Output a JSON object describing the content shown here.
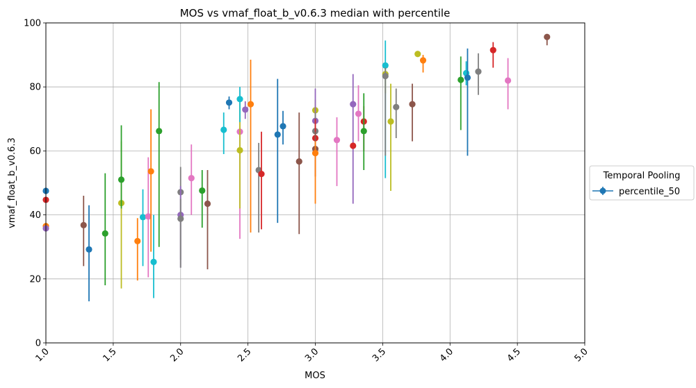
{
  "chart_data": {
    "type": "scatter",
    "title": "MOS vs vmaf_float_b_v0.6.3 median with percentile",
    "xlabel": "MOS",
    "ylabel": "vmaf_float_b_v0.6.3",
    "xlim": [
      1.0,
      5.0
    ],
    "ylim": [
      0,
      100
    ],
    "x_ticks": [
      "1.0",
      "1.5",
      "2.0",
      "2.5",
      "3.0",
      "3.5",
      "4.0",
      "4.5",
      "5.0"
    ],
    "y_ticks": [
      "0",
      "20",
      "40",
      "60",
      "80",
      "100"
    ],
    "grid": true,
    "legend": {
      "title": "Temporal Pooling",
      "placement": "right-outside",
      "entries": [
        "percentile_50"
      ]
    },
    "colors": [
      "#1f77b4",
      "#ff7f0e",
      "#2ca02c",
      "#d62728",
      "#9467bd",
      "#8c564b",
      "#e377c2",
      "#7f7f7f",
      "#bcbd22",
      "#17becf"
    ],
    "points": [
      {
        "x": 1.0,
        "y": 47.5,
        "low": 47.5,
        "high": 47.5,
        "color": "#1f77b4"
      },
      {
        "x": 1.0,
        "y": 36.5,
        "low": 36.5,
        "high": 36.5,
        "color": "#ff7f0e"
      },
      {
        "x": 1.0,
        "y": 44.7,
        "low": 44.7,
        "high": 44.7,
        "color": "#d62728"
      },
      {
        "x": 1.0,
        "y": 35.8,
        "low": 35.8,
        "high": 35.8,
        "color": "#9467bd"
      },
      {
        "x": 1.28,
        "y": 36.8,
        "low": 24.0,
        "high": 46.0,
        "color": "#8c564b"
      },
      {
        "x": 1.32,
        "y": 29.2,
        "low": 13.0,
        "high": 43.0,
        "color": "#1f77b4"
      },
      {
        "x": 1.44,
        "y": 34.2,
        "low": 18.0,
        "high": 53.0,
        "color": "#2ca02c"
      },
      {
        "x": 1.56,
        "y": 43.7,
        "low": 17.0,
        "high": 63.0,
        "color": "#bcbd22"
      },
      {
        "x": 1.56,
        "y": 51.0,
        "low": 42.0,
        "high": 68.0,
        "color": "#2ca02c"
      },
      {
        "x": 1.68,
        "y": 31.8,
        "low": 19.5,
        "high": 39.0,
        "color": "#ff7f0e"
      },
      {
        "x": 1.72,
        "y": 39.3,
        "low": 24.0,
        "high": 48.0,
        "color": "#17becf"
      },
      {
        "x": 1.76,
        "y": 39.5,
        "low": 20.5,
        "high": 58.0,
        "color": "#e377c2"
      },
      {
        "x": 1.78,
        "y": 53.6,
        "low": 28.5,
        "high": 73.0,
        "color": "#ff7f0e"
      },
      {
        "x": 1.8,
        "y": 25.3,
        "low": 14.0,
        "high": 40.0,
        "color": "#17becf"
      },
      {
        "x": 1.84,
        "y": 66.2,
        "low": 30.0,
        "high": 81.5,
        "color": "#2ca02c"
      },
      {
        "x": 2.0,
        "y": 47.1,
        "low": 26.0,
        "high": 55.0,
        "color": "#7f7f7f"
      },
      {
        "x": 2.0,
        "y": 40.0,
        "low": 23.5,
        "high": 49.0,
        "color": "#9467bd"
      },
      {
        "x": 2.0,
        "y": 38.8,
        "low": 23.5,
        "high": 45.0,
        "color": "#7f7f7f"
      },
      {
        "x": 2.08,
        "y": 51.5,
        "low": 40.0,
        "high": 62.0,
        "color": "#e377c2"
      },
      {
        "x": 2.16,
        "y": 47.6,
        "low": 36.0,
        "high": 54.0,
        "color": "#2ca02c"
      },
      {
        "x": 2.2,
        "y": 43.5,
        "low": 23.0,
        "high": 54.0,
        "color": "#8c564b"
      },
      {
        "x": 2.32,
        "y": 66.6,
        "low": 59.0,
        "high": 72.0,
        "color": "#17becf"
      },
      {
        "x": 2.36,
        "y": 75.1,
        "low": 73.0,
        "high": 77.0,
        "color": "#1f77b4"
      },
      {
        "x": 2.44,
        "y": 66.0,
        "low": 32.5,
        "high": 79.0,
        "color": "#e377c2"
      },
      {
        "x": 2.44,
        "y": 60.2,
        "low": 42.0,
        "high": 75.0,
        "color": "#bcbd22"
      },
      {
        "x": 2.44,
        "y": 76.2,
        "low": 69.0,
        "high": 80.0,
        "color": "#17becf"
      },
      {
        "x": 2.48,
        "y": 72.9,
        "low": 70.0,
        "high": 75.5,
        "color": "#9467bd"
      },
      {
        "x": 2.52,
        "y": 74.6,
        "low": 34.5,
        "high": 88.5,
        "color": "#ff7f0e"
      },
      {
        "x": 2.58,
        "y": 54.0,
        "low": 34.5,
        "high": 62.5,
        "color": "#7f7f7f"
      },
      {
        "x": 2.6,
        "y": 52.8,
        "low": 35.5,
        "high": 66.0,
        "color": "#d62728"
      },
      {
        "x": 2.72,
        "y": 65.1,
        "low": 37.5,
        "high": 82.5,
        "color": "#1f77b4"
      },
      {
        "x": 2.76,
        "y": 67.7,
        "low": 62.0,
        "high": 72.5,
        "color": "#1f77b4"
      },
      {
        "x": 2.88,
        "y": 56.7,
        "low": 34.0,
        "high": 72.0,
        "color": "#8c564b"
      },
      {
        "x": 3.0,
        "y": 72.7,
        "low": 59.0,
        "high": 76.0,
        "color": "#bcbd22"
      },
      {
        "x": 3.0,
        "y": 69.4,
        "low": 63.0,
        "high": 79.5,
        "color": "#9467bd"
      },
      {
        "x": 3.0,
        "y": 66.2,
        "low": 57.0,
        "high": 72.0,
        "color": "#7f7f7f"
      },
      {
        "x": 3.0,
        "y": 64.0,
        "low": 52.0,
        "high": 70.0,
        "color": "#d62728"
      },
      {
        "x": 3.0,
        "y": 60.6,
        "low": 52.0,
        "high": 66.0,
        "color": "#8c564b"
      },
      {
        "x": 3.0,
        "y": 59.3,
        "low": 43.5,
        "high": 63.0,
        "color": "#ff7f0e"
      },
      {
        "x": 3.16,
        "y": 63.4,
        "low": 49.0,
        "high": 70.5,
        "color": "#e377c2"
      },
      {
        "x": 3.28,
        "y": 74.6,
        "low": 43.5,
        "high": 84.0,
        "color": "#9467bd"
      },
      {
        "x": 3.28,
        "y": 61.6,
        "low": 61.0,
        "high": 62.5,
        "color": "#d62728"
      },
      {
        "x": 3.32,
        "y": 71.6,
        "low": 63.0,
        "high": 80.5,
        "color": "#e377c2"
      },
      {
        "x": 3.36,
        "y": 69.2,
        "low": 60.0,
        "high": 74.0,
        "color": "#d62728"
      },
      {
        "x": 3.36,
        "y": 66.2,
        "low": 54.0,
        "high": 78.0,
        "color": "#2ca02c"
      },
      {
        "x": 3.52,
        "y": 86.7,
        "low": 51.5,
        "high": 94.5,
        "color": "#17becf"
      },
      {
        "x": 3.52,
        "y": 84.0,
        "low": 78.0,
        "high": 86.0,
        "color": "#bcbd22"
      },
      {
        "x": 3.52,
        "y": 83.4,
        "low": 58.5,
        "high": 86.0,
        "color": "#7f7f7f"
      },
      {
        "x": 3.56,
        "y": 69.2,
        "low": 47.5,
        "high": 81.0,
        "color": "#bcbd22"
      },
      {
        "x": 3.6,
        "y": 73.7,
        "low": 64.0,
        "high": 79.5,
        "color": "#7f7f7f"
      },
      {
        "x": 3.72,
        "y": 74.6,
        "low": 63.0,
        "high": 81.0,
        "color": "#8c564b"
      },
      {
        "x": 3.76,
        "y": 90.3,
        "low": 90.0,
        "high": 91.0,
        "color": "#bcbd22"
      },
      {
        "x": 3.8,
        "y": 88.3,
        "low": 84.5,
        "high": 90.0,
        "color": "#ff7f0e"
      },
      {
        "x": 4.08,
        "y": 82.2,
        "low": 66.5,
        "high": 89.5,
        "color": "#2ca02c"
      },
      {
        "x": 4.12,
        "y": 84.3,
        "low": 80.5,
        "high": 88.0,
        "color": "#17becf"
      },
      {
        "x": 4.13,
        "y": 82.9,
        "low": 58.5,
        "high": 92.0,
        "color": "#1f77b4"
      },
      {
        "x": 4.21,
        "y": 84.8,
        "low": 77.5,
        "high": 90.5,
        "color": "#7f7f7f"
      },
      {
        "x": 4.32,
        "y": 91.5,
        "low": 86.0,
        "high": 94.0,
        "color": "#d62728"
      },
      {
        "x": 4.43,
        "y": 82.0,
        "low": 73.0,
        "high": 89.0,
        "color": "#e377c2"
      },
      {
        "x": 4.72,
        "y": 95.6,
        "low": 93.0,
        "high": 96.0,
        "color": "#8c564b"
      }
    ]
  }
}
